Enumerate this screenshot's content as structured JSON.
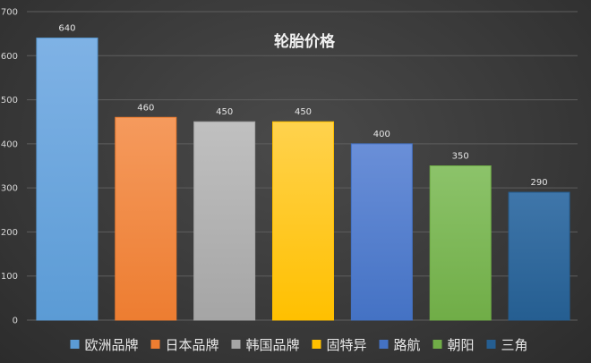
{
  "chart_data": {
    "type": "bar",
    "title": "轮胎价格",
    "xlabel": "",
    "ylabel": "",
    "ylim": [
      0,
      700
    ],
    "yticks": [
      0,
      100,
      200,
      300,
      400,
      500,
      600,
      700
    ],
    "grid": true,
    "legend_position": "bottom",
    "categories": [
      "欧洲品牌",
      "日本品牌",
      "韩国品牌",
      "固特异",
      "路航",
      "朝阳",
      "三角"
    ],
    "values": [
      640,
      460,
      450,
      450,
      400,
      350,
      290
    ],
    "colors": [
      "#5b9bd5",
      "#ed7d31",
      "#a5a5a5",
      "#ffc000",
      "#4472c4",
      "#70ad47",
      "#255e91"
    ],
    "colors_light": [
      "#7fb2e5",
      "#f59a5d",
      "#c0c0c0",
      "#ffd24d",
      "#6a8fd8",
      "#8cc36a",
      "#3f76aa"
    ]
  }
}
